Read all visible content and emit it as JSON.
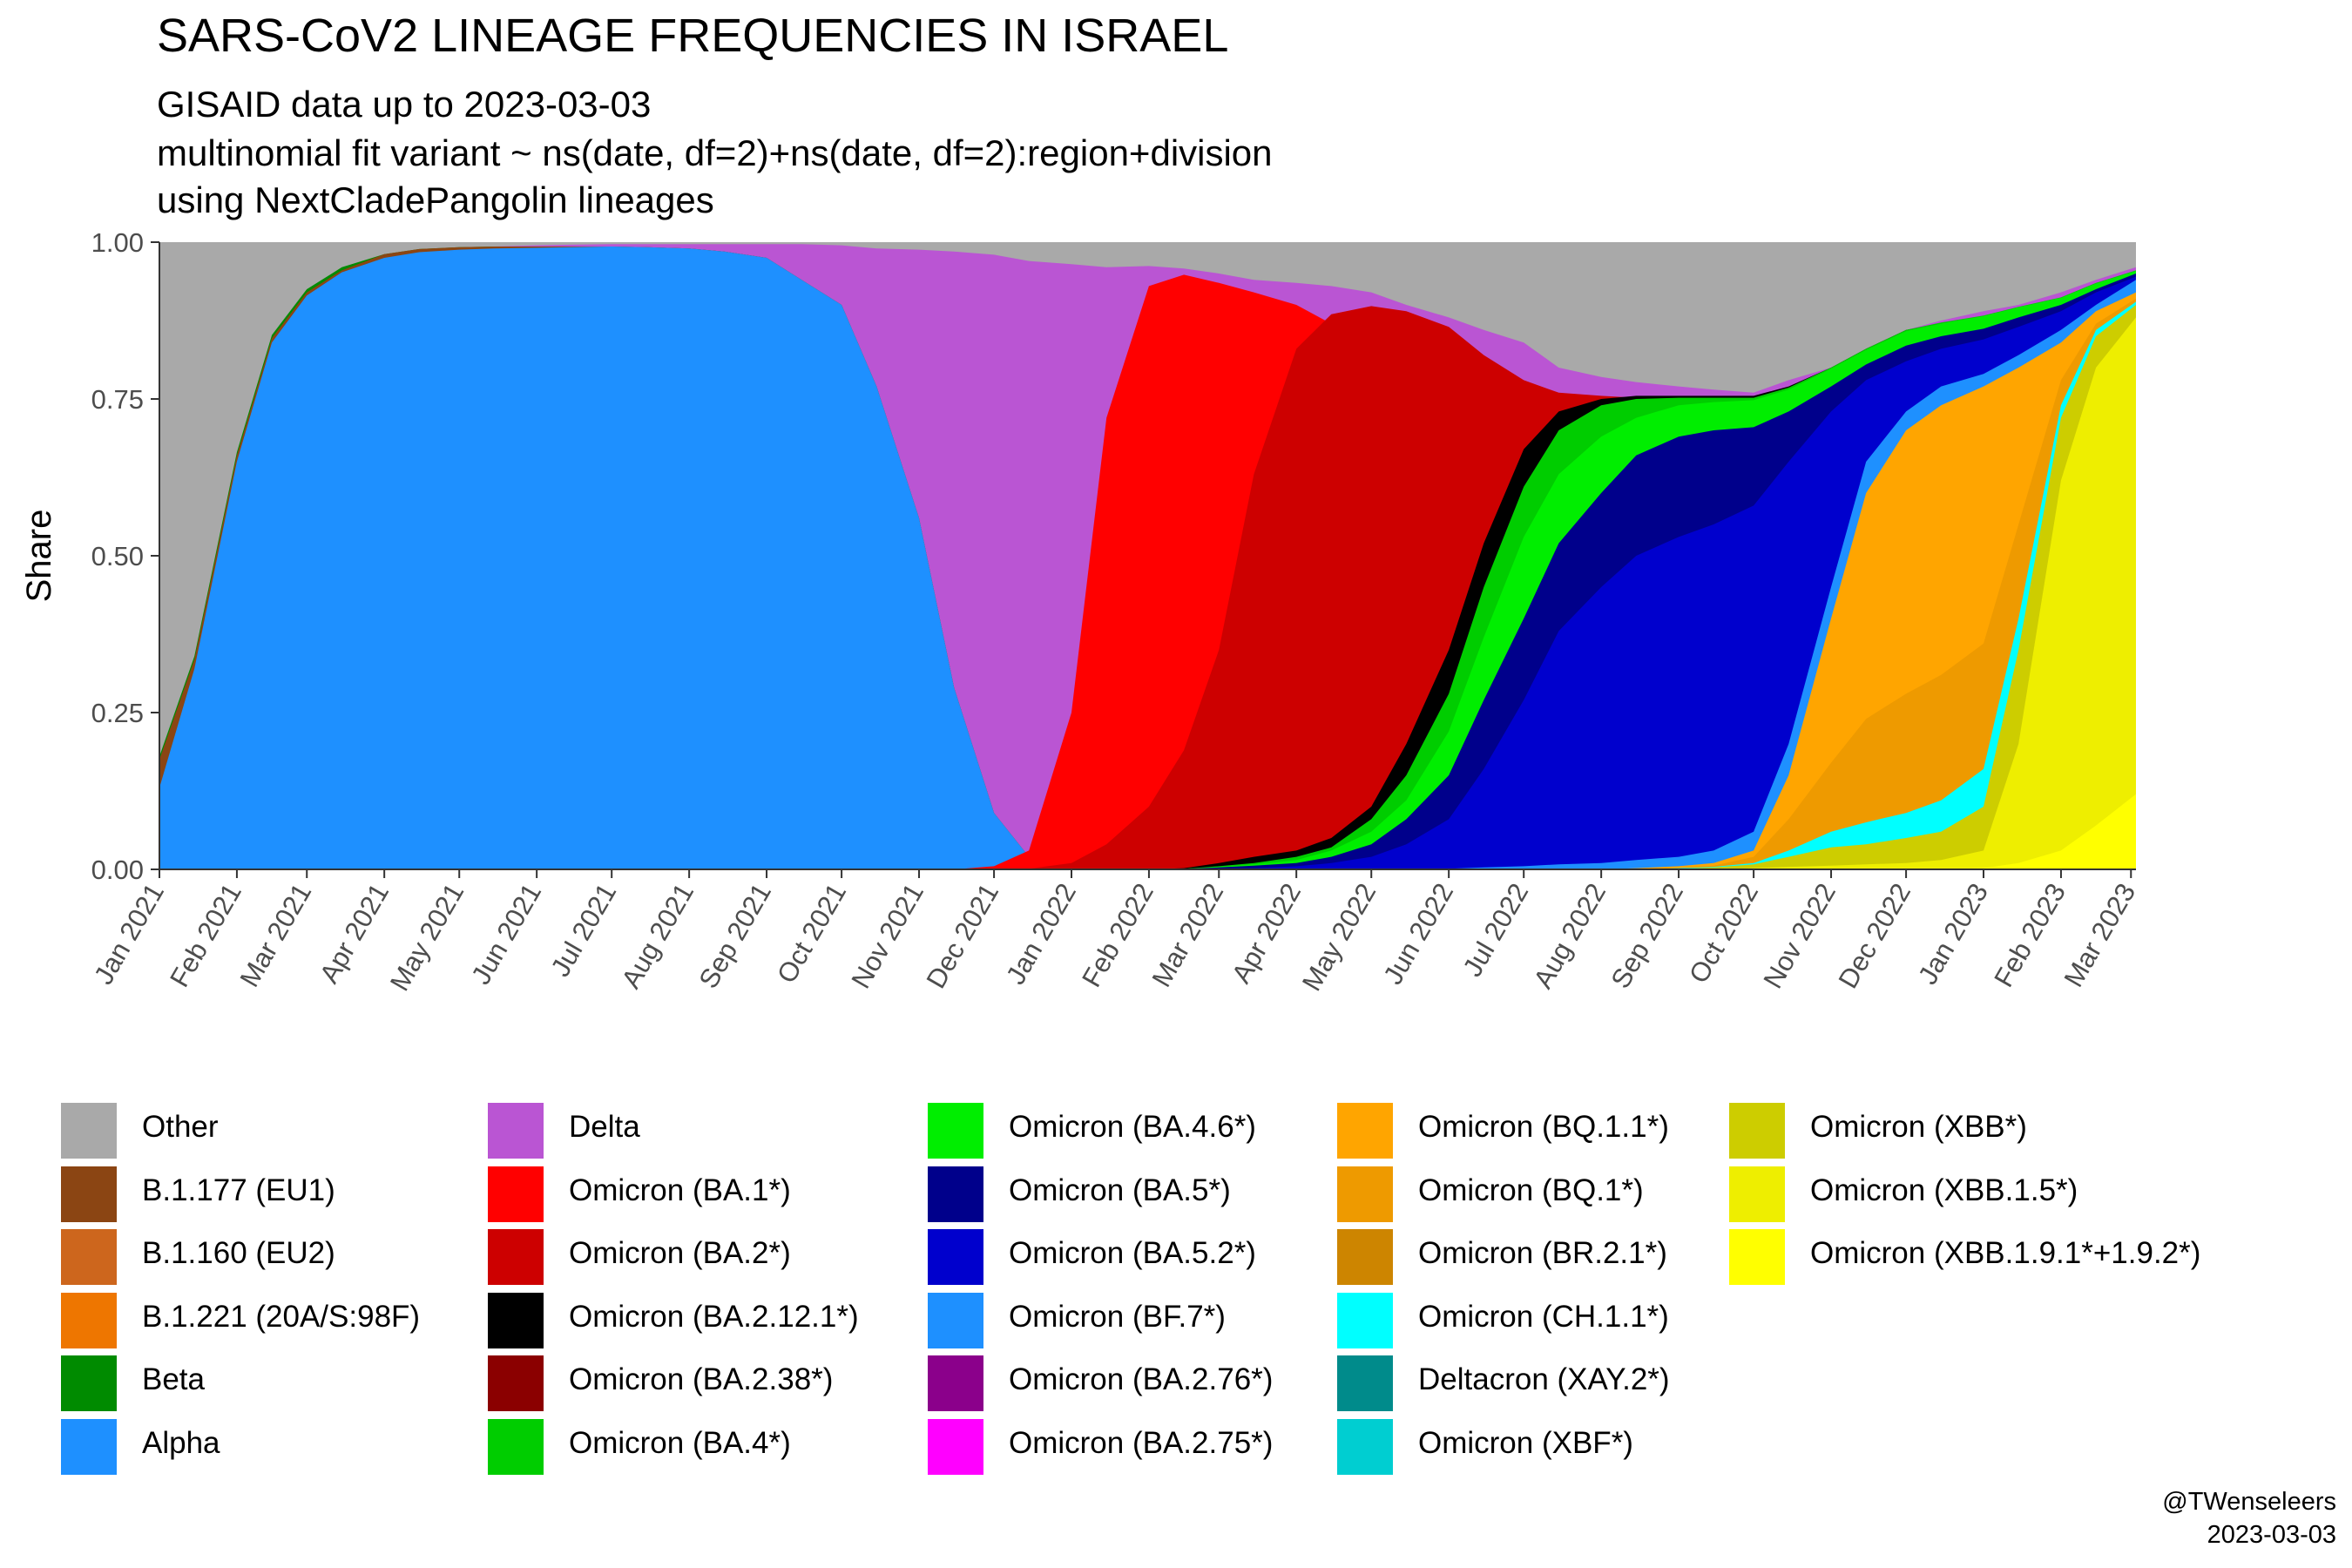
{
  "title": "SARS-CoV2 LINEAGE FREQUENCIES IN ISRAEL",
  "subtitle_lines": [
    "GISAID data up to 2023-03-03",
    "multinomial fit variant ~ ns(date, df=2)+ns(date, df=2):region+division",
    "using NextCladePangolin lineages"
  ],
  "caption": {
    "author": "@TWenseleers",
    "date": "2023-03-03"
  },
  "chart_data": {
    "type": "area",
    "stacked": true,
    "normalized": true,
    "ylabel": "Share",
    "xlabel": "",
    "ylim": [
      0,
      1
    ],
    "yticks": [
      "0.00",
      "0.25",
      "0.50",
      "0.75",
      "1.00"
    ],
    "x_start": "2021-01-01",
    "x_end": "2023-03-03",
    "xticks": [
      "Jan 2021",
      "Feb 2021",
      "Mar 2021",
      "Apr 2021",
      "May 2021",
      "Jun 2021",
      "Jul 2021",
      "Aug 2021",
      "Sep 2021",
      "Oct 2021",
      "Nov 2021",
      "Dec 2021",
      "Jan 2022",
      "Feb 2022",
      "Mar 2022",
      "Apr 2022",
      "May 2022",
      "Jun 2022",
      "Jul 2022",
      "Aug 2022",
      "Sep 2022",
      "Oct 2022",
      "Nov 2022",
      "Dec 2022",
      "Jan 2023",
      "Feb 2023",
      "Mar 2023"
    ],
    "grid": true,
    "legend_position": "bottom",
    "legend_columns": 5,
    "series": [
      {
        "name": "Other",
        "color": "#A9A9A9"
      },
      {
        "name": "B.1.177 (EU1)",
        "color": "#8B4513"
      },
      {
        "name": "B.1.160 (EU2)",
        "color": "#CD661D"
      },
      {
        "name": "B.1.221 (20A/S:98F)",
        "color": "#EE7600"
      },
      {
        "name": "Beta",
        "color": "#008B00"
      },
      {
        "name": "Alpha",
        "color": "#1E90FF"
      },
      {
        "name": "Delta",
        "color": "#BA55D3"
      },
      {
        "name": "Omicron (BA.1*)",
        "color": "#FF0000"
      },
      {
        "name": "Omicron (BA.2*)",
        "color": "#CD0000"
      },
      {
        "name": "Omicron (BA.2.12.1*)",
        "color": "#000000"
      },
      {
        "name": "Omicron (BA.2.38*)",
        "color": "#8B0000"
      },
      {
        "name": "Omicron (BA.4*)",
        "color": "#00CD00"
      },
      {
        "name": "Omicron (BA.4.6*)",
        "color": "#00EE00"
      },
      {
        "name": "Omicron (BA.5*)",
        "color": "#00008B"
      },
      {
        "name": "Omicron (BA.5.2*)",
        "color": "#0000CD"
      },
      {
        "name": "Omicron (BF.7*)",
        "color": "#1E90FF"
      },
      {
        "name": "Omicron (BA.2.76*)",
        "color": "#8B008B"
      },
      {
        "name": "Omicron (BA.2.75*)",
        "color": "#FF00FF"
      },
      {
        "name": "Omicron (BQ.1.1*)",
        "color": "#FFA500"
      },
      {
        "name": "Omicron (BQ.1*)",
        "color": "#EE9A00"
      },
      {
        "name": "Omicron (BR.2.1*)",
        "color": "#CD8500"
      },
      {
        "name": "Omicron (CH.1.1*)",
        "color": "#00FFFF"
      },
      {
        "name": "Deltacron (XAY.2*)",
        "color": "#008B8B"
      },
      {
        "name": "Omicron (XBF*)",
        "color": "#00CED1"
      },
      {
        "name": "Omicron (XBB*)",
        "color": "#CDCD00"
      },
      {
        "name": "Omicron (XBB.1.5*)",
        "color": "#EEEE00"
      },
      {
        "name": "Omicron (XBB.1.9.1*+1.9.2*)",
        "color": "#FFFF00"
      }
    ],
    "x": [
      "2021-01-01",
      "2021-01-15",
      "2021-02-01",
      "2021-02-15",
      "2021-03-01",
      "2021-03-15",
      "2021-04-01",
      "2021-04-15",
      "2021-05-01",
      "2021-05-15",
      "2021-06-01",
      "2021-06-15",
      "2021-07-01",
      "2021-07-15",
      "2021-08-01",
      "2021-08-15",
      "2021-09-01",
      "2021-09-15",
      "2021-10-01",
      "2021-10-15",
      "2021-11-01",
      "2021-11-15",
      "2021-12-01",
      "2021-12-15",
      "2022-01-01",
      "2022-01-15",
      "2022-02-01",
      "2022-02-15",
      "2022-03-01",
      "2022-03-15",
      "2022-04-01",
      "2022-04-15",
      "2022-05-01",
      "2022-05-15",
      "2022-06-01",
      "2022-06-15",
      "2022-07-01",
      "2022-07-15",
      "2022-08-01",
      "2022-08-15",
      "2022-09-01",
      "2022-09-15",
      "2022-10-01",
      "2022-10-15",
      "2022-11-01",
      "2022-11-15",
      "2022-12-01",
      "2022-12-15",
      "2023-01-01",
      "2023-01-15",
      "2023-02-01",
      "2023-02-15",
      "2023-03-03"
    ],
    "cumulative_tops": {
      "Alpha": [
        0.13,
        0.32,
        0.65,
        0.84,
        0.915,
        0.952,
        0.975,
        0.984,
        0.988,
        0.99,
        0.991,
        0.992,
        0.993,
        0.992,
        0.99,
        0.985,
        0.975,
        0.94,
        0.9,
        0.77,
        0.56,
        0.29,
        0.09,
        0.02,
        0.005,
        0.002,
        0.001,
        0.001,
        0.0,
        0.0,
        0,
        0,
        0,
        0,
        0,
        0,
        0,
        0,
        0,
        0,
        0,
        0,
        0,
        0,
        0,
        0,
        0,
        0,
        0,
        0,
        0,
        0,
        0
      ],
      "Delta": [
        0.133,
        0.322,
        0.651,
        0.841,
        0.916,
        0.953,
        0.977,
        0.986,
        0.99,
        0.993,
        0.995,
        0.996,
        0.997,
        0.997,
        0.997,
        0.997,
        0.997,
        0.997,
        0.995,
        0.99,
        0.988,
        0.985,
        0.98,
        0.97,
        0.965,
        0.96,
        0.962,
        0.958,
        0.95,
        0.94,
        0.935,
        0.93,
        0.92,
        0.9,
        0.88,
        0.86,
        0.84,
        0.8,
        0.785,
        0.777,
        0.77,
        0.765,
        0.76,
        0.78,
        0.8,
        0.83,
        0.86,
        0.875,
        0.89,
        0.9,
        0.92,
        0.94,
        0.96
      ],
      "Omicron (BA.1*)": [
        0,
        0,
        0,
        0,
        0,
        0,
        0,
        0,
        0,
        0,
        0,
        0,
        0,
        0,
        0,
        0,
        0,
        0,
        0,
        0,
        0,
        0,
        0.005,
        0.03,
        0.25,
        0.72,
        0.93,
        0.948,
        0.935,
        0.92,
        0.9,
        0.87,
        0.82,
        0.73,
        0.6,
        0.46,
        0.36,
        0.28,
        0.2,
        0.12,
        0.08,
        0.05,
        0.03,
        0.02,
        0.01,
        0.005,
        0.003,
        0,
        0,
        0,
        0,
        0,
        0
      ],
      "Omicron (BA.2*)": [
        0,
        0,
        0,
        0,
        0,
        0,
        0,
        0,
        0,
        0,
        0,
        0,
        0,
        0,
        0,
        0,
        0,
        0,
        0,
        0,
        0,
        0,
        0,
        0.001,
        0.01,
        0.04,
        0.1,
        0.19,
        0.35,
        0.63,
        0.83,
        0.885,
        0.898,
        0.89,
        0.865,
        0.82,
        0.78,
        0.76,
        0.755,
        0.752,
        0.75,
        0.748,
        0.745,
        0.76,
        0.79,
        0.82,
        0.85,
        0.86,
        0.87,
        0.89,
        0.91,
        0.93,
        0.95
      ],
      "Omicron (BA.2.12.1*)": [
        0,
        0,
        0,
        0,
        0,
        0,
        0,
        0,
        0,
        0,
        0,
        0,
        0,
        0,
        0,
        0,
        0,
        0,
        0,
        0,
        0,
        0,
        0,
        0,
        0,
        0,
        0,
        0.002,
        0.01,
        0.02,
        0.03,
        0.05,
        0.1,
        0.2,
        0.35,
        0.52,
        0.67,
        0.73,
        0.75,
        0.755,
        0.755,
        0.755,
        0.755,
        0.77,
        0.8,
        0.83,
        0.86,
        0.87,
        0.88,
        0.895,
        0.91,
        0.93,
        0.95
      ],
      "Omicron (BA.4*)": [
        0,
        0,
        0,
        0,
        0,
        0,
        0,
        0,
        0,
        0,
        0,
        0,
        0,
        0,
        0,
        0,
        0,
        0,
        0,
        0,
        0,
        0,
        0,
        0,
        0,
        0,
        0,
        0.001,
        0.005,
        0.01,
        0.02,
        0.035,
        0.08,
        0.15,
        0.28,
        0.45,
        0.61,
        0.7,
        0.74,
        0.75,
        0.752,
        0.752,
        0.752,
        0.768,
        0.8,
        0.83,
        0.86,
        0.872,
        0.883,
        0.897,
        0.912,
        0.935,
        0.955
      ],
      "Omicron (BA.4.6*)": [
        0,
        0,
        0,
        0,
        0,
        0,
        0,
        0,
        0,
        0,
        0,
        0,
        0,
        0,
        0,
        0,
        0,
        0,
        0,
        0,
        0,
        0,
        0,
        0,
        0,
        0,
        0,
        0.001,
        0.004,
        0.008,
        0.015,
        0.03,
        0.06,
        0.11,
        0.22,
        0.37,
        0.53,
        0.63,
        0.69,
        0.72,
        0.74,
        0.745,
        0.748,
        0.765,
        0.798,
        0.828,
        0.858,
        0.87,
        0.882,
        0.896,
        0.911,
        0.934,
        0.954
      ],
      "Omicron (BA.5*)": [
        0,
        0,
        0,
        0,
        0,
        0,
        0,
        0,
        0,
        0,
        0,
        0,
        0,
        0,
        0,
        0,
        0,
        0,
        0,
        0,
        0,
        0,
        0,
        0,
        0,
        0,
        0,
        0.001,
        0.003,
        0.006,
        0.01,
        0.02,
        0.04,
        0.08,
        0.15,
        0.27,
        0.4,
        0.52,
        0.6,
        0.66,
        0.69,
        0.7,
        0.705,
        0.73,
        0.77,
        0.805,
        0.835,
        0.85,
        0.862,
        0.88,
        0.9,
        0.925,
        0.95
      ],
      "Omicron (BA.5.2*)": [
        0,
        0,
        0,
        0,
        0,
        0,
        0,
        0,
        0,
        0,
        0,
        0,
        0,
        0,
        0,
        0,
        0,
        0,
        0,
        0,
        0,
        0,
        0,
        0,
        0,
        0,
        0,
        0,
        0.001,
        0.002,
        0.005,
        0.01,
        0.02,
        0.04,
        0.08,
        0.16,
        0.27,
        0.38,
        0.45,
        0.5,
        0.53,
        0.55,
        0.58,
        0.65,
        0.73,
        0.78,
        0.81,
        0.83,
        0.845,
        0.865,
        0.89,
        0.92,
        0.945
      ],
      "Omicron (BF.7*)": [
        0,
        0,
        0,
        0,
        0,
        0,
        0,
        0,
        0,
        0,
        0,
        0,
        0,
        0,
        0,
        0,
        0,
        0,
        0,
        0,
        0,
        0,
        0,
        0,
        0,
        0,
        0,
        0,
        0,
        0,
        0,
        0,
        0,
        0,
        0.001,
        0.003,
        0.005,
        0.008,
        0.01,
        0.015,
        0.02,
        0.03,
        0.06,
        0.2,
        0.45,
        0.65,
        0.73,
        0.77,
        0.79,
        0.82,
        0.86,
        0.9,
        0.94
      ],
      "Omicron (BQ.1.1*)": [
        0,
        0,
        0,
        0,
        0,
        0,
        0,
        0,
        0,
        0,
        0,
        0,
        0,
        0,
        0,
        0,
        0,
        0,
        0,
        0,
        0,
        0,
        0,
        0,
        0,
        0,
        0,
        0,
        0,
        0,
        0,
        0,
        0,
        0,
        0,
        0,
        0,
        0,
        0,
        0.002,
        0.005,
        0.01,
        0.03,
        0.15,
        0.4,
        0.6,
        0.7,
        0.74,
        0.77,
        0.8,
        0.84,
        0.89,
        0.92
      ],
      "Omicron (BQ.1*)": [
        0,
        0,
        0,
        0,
        0,
        0,
        0,
        0,
        0,
        0,
        0,
        0,
        0,
        0,
        0,
        0,
        0,
        0,
        0,
        0,
        0,
        0,
        0,
        0,
        0,
        0,
        0,
        0,
        0,
        0,
        0,
        0,
        0,
        0,
        0,
        0,
        0,
        0,
        0,
        0.001,
        0.003,
        0.006,
        0.02,
        0.08,
        0.17,
        0.24,
        0.28,
        0.31,
        0.36,
        0.55,
        0.78,
        0.87,
        0.91
      ],
      "Omicron (CH.1.1*)": [
        0,
        0,
        0,
        0,
        0,
        0,
        0,
        0,
        0,
        0,
        0,
        0,
        0,
        0,
        0,
        0,
        0,
        0,
        0,
        0,
        0,
        0,
        0,
        0,
        0,
        0,
        0,
        0,
        0,
        0,
        0,
        0,
        0,
        0,
        0,
        0,
        0,
        0,
        0,
        0,
        0.002,
        0.004,
        0.01,
        0.03,
        0.06,
        0.075,
        0.09,
        0.11,
        0.16,
        0.4,
        0.74,
        0.86,
        0.905
      ],
      "Omicron (XBB*)": [
        0,
        0,
        0,
        0,
        0,
        0,
        0,
        0,
        0,
        0,
        0,
        0,
        0,
        0,
        0,
        0,
        0,
        0,
        0,
        0,
        0,
        0,
        0,
        0,
        0,
        0,
        0,
        0,
        0,
        0,
        0,
        0,
        0,
        0,
        0,
        0,
        0,
        0,
        0,
        0,
        0.001,
        0.003,
        0.008,
        0.02,
        0.035,
        0.04,
        0.05,
        0.06,
        0.1,
        0.35,
        0.72,
        0.85,
        0.9
      ],
      "Omicron (XBB.1.5*)": [
        0,
        0,
        0,
        0,
        0,
        0,
        0,
        0,
        0,
        0,
        0,
        0,
        0,
        0,
        0,
        0,
        0,
        0,
        0,
        0,
        0,
        0,
        0,
        0,
        0,
        0,
        0,
        0,
        0,
        0,
        0,
        0,
        0,
        0,
        0,
        0,
        0,
        0,
        0,
        0,
        0,
        0,
        0.002,
        0.004,
        0.006,
        0.008,
        0.01,
        0.015,
        0.03,
        0.2,
        0.62,
        0.8,
        0.88
      ],
      "Omicron (XBB.1.9.1*+1.9.2*)": [
        0,
        0,
        0,
        0,
        0,
        0,
        0,
        0,
        0,
        0,
        0,
        0,
        0,
        0,
        0,
        0,
        0,
        0,
        0,
        0,
        0,
        0,
        0,
        0,
        0,
        0,
        0,
        0,
        0,
        0,
        0,
        0,
        0,
        0,
        0,
        0,
        0,
        0,
        0,
        0,
        0,
        0,
        0,
        0,
        0,
        0,
        0,
        0,
        0.002,
        0.01,
        0.03,
        0.07,
        0.12
      ]
    }
  }
}
